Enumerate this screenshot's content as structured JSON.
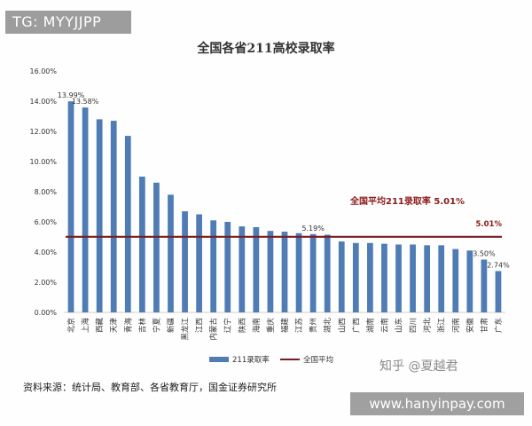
{
  "watermarks": {
    "tg": "TG: MYYJJPP",
    "zhihu": "知乎 @夏越君",
    "site": "www.hanyinpay.com"
  },
  "source_note": "资料来源：统计局、教育部、各省教育厅，国金证券研究所",
  "colors": {
    "bar": "#4f7cb5",
    "average_line": "#7a1c22",
    "average_label": "#8b1a1a",
    "axis_text": "#333333"
  },
  "chart_data": {
    "type": "bar",
    "title": "全国各省211高校录取率",
    "xlabel": "",
    "ylabel": "",
    "ylim": [
      0,
      16
    ],
    "ytick_step": 2,
    "ytick_labels": [
      "0.00%",
      "2.00%",
      "4.00%",
      "6.00%",
      "8.00%",
      "10.00%",
      "12.00%",
      "14.00%",
      "16.00%"
    ],
    "grid": false,
    "legend_position": "bottom",
    "categories": [
      "北京",
      "上海",
      "西藏",
      "天津",
      "青海",
      "吉林",
      "宁夏",
      "新疆",
      "黑龙江",
      "江西",
      "内蒙古",
      "辽宁",
      "陕西",
      "海南",
      "重庆",
      "福建",
      "江苏",
      "贵州",
      "湖北",
      "山西",
      "广西",
      "湖南",
      "云南",
      "山东",
      "四川",
      "河北",
      "浙江",
      "河南",
      "安徽",
      "甘肃",
      "广东"
    ],
    "series": [
      {
        "name": "211录取率",
        "type": "bar",
        "values": [
          13.99,
          13.58,
          12.8,
          12.7,
          11.7,
          9.0,
          8.6,
          7.8,
          6.7,
          6.5,
          6.1,
          6.0,
          5.7,
          5.65,
          5.4,
          5.35,
          5.25,
          5.19,
          5.15,
          4.7,
          4.6,
          4.6,
          4.55,
          4.5,
          4.5,
          4.45,
          4.45,
          4.2,
          4.1,
          3.5,
          2.74
        ]
      },
      {
        "name": "全国平均",
        "type": "line",
        "value": 5.01
      }
    ],
    "data_labels": [
      {
        "category": "北京",
        "text": "13.99%"
      },
      {
        "category": "上海",
        "text": "13.58%"
      },
      {
        "category": "贵州",
        "text": "5.19%"
      },
      {
        "category": "甘肃",
        "text": "3.50%"
      },
      {
        "category": "广东",
        "text": "2.74%"
      }
    ],
    "average_line_labels": {
      "annotation": "全国平均211录取率 5.01%",
      "end_label": "5.01%"
    }
  }
}
